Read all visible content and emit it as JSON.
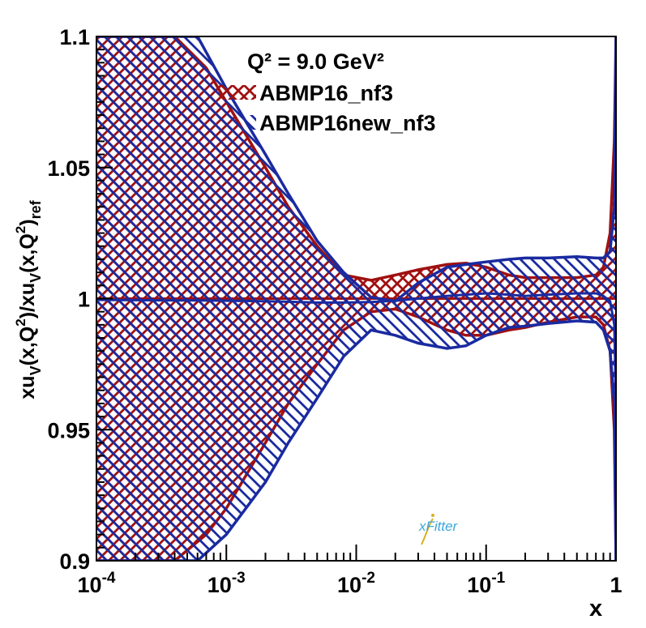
{
  "chart_data": {
    "type": "area",
    "title": "",
    "annotation": "Q² = 9.0 GeV²",
    "xlabel": "x",
    "ylabel": "xu_V(x,Q²)/xu_V(x,Q²)_ref",
    "xscale": "log",
    "xlim": [
      0.0001,
      1
    ],
    "ylim": [
      0.9,
      1.1
    ],
    "x_ticks": [
      {
        "value": 0.0001,
        "base": "10",
        "exp": "-4"
      },
      {
        "value": 0.001,
        "base": "10",
        "exp": "-3"
      },
      {
        "value": 0.01,
        "base": "10",
        "exp": "-2"
      },
      {
        "value": 0.1,
        "base": "10",
        "exp": "-1"
      },
      {
        "value": 1,
        "base": "1",
        "exp": ""
      }
    ],
    "y_ticks": [
      {
        "value": 0.9,
        "label": "0.9"
      },
      {
        "value": 0.95,
        "label": "0.95"
      },
      {
        "value": 1.0,
        "label": "1"
      },
      {
        "value": 1.05,
        "label": "1.05"
      },
      {
        "value": 1.1,
        "label": "1.1"
      }
    ],
    "legend_position": "top-center",
    "series": [
      {
        "name": "ABMP16_nf3",
        "color": "#a01010",
        "hatch": "crosshatch",
        "x": [
          0.0001,
          0.0004,
          0.0007,
          0.001,
          0.002,
          0.003,
          0.005,
          0.008,
          0.013,
          0.02,
          0.03,
          0.05,
          0.07,
          0.1,
          0.15,
          0.2,
          0.3,
          0.5,
          0.7,
          0.8,
          0.9,
          0.97,
          1.0
        ],
        "central": [
          1.0,
          1.0,
          1.0,
          1.0,
          1.0,
          1.0,
          1.0,
          1.0,
          1.0,
          1.0,
          1.0,
          1.0,
          1.0,
          1.0,
          1.0,
          1.0,
          1.0,
          1.0,
          1.0,
          1.0,
          1.0,
          1.0,
          1.0
        ],
        "upper": [
          1.1,
          1.1,
          1.088,
          1.075,
          1.05,
          1.035,
          1.02,
          1.009,
          1.007,
          1.009,
          1.011,
          1.013,
          1.0135,
          1.012,
          1.009,
          1.008,
          1.008,
          1.008,
          1.009,
          1.012,
          1.025,
          1.06,
          1.1
        ],
        "lower": [
          0.9,
          0.9,
          0.91,
          0.92,
          0.945,
          0.96,
          0.975,
          0.988,
          0.995,
          0.996,
          0.993,
          0.988,
          0.986,
          0.986,
          0.988,
          0.989,
          0.991,
          0.993,
          0.993,
          0.99,
          0.98,
          0.95,
          0.9
        ]
      },
      {
        "name": "ABMP16new_nf3",
        "color": "#1a2aa0",
        "hatch": "diagonal",
        "x": [
          0.0001,
          0.0004,
          0.0006,
          0.001,
          0.002,
          0.003,
          0.005,
          0.008,
          0.013,
          0.02,
          0.03,
          0.05,
          0.07,
          0.1,
          0.15,
          0.2,
          0.3,
          0.5,
          0.7,
          0.8,
          0.9,
          0.97,
          1.0
        ],
        "central": [
          0.9995,
          0.9993,
          0.9993,
          0.9992,
          0.999,
          0.9988,
          0.9985,
          0.9985,
          0.9987,
          0.9992,
          1.0,
          1.001,
          1.0015,
          1.002,
          1.0015,
          1.001,
          1.0015,
          1.002,
          1.002,
          1.001,
          0.999,
          0.99,
          0.96
        ],
        "upper": [
          1.1,
          1.1,
          1.1,
          1.08,
          1.055,
          1.04,
          1.022,
          1.01,
          1.0005,
          0.999,
          1.006,
          1.012,
          1.013,
          1.014,
          1.015,
          1.0155,
          1.0155,
          1.016,
          1.0155,
          1.0155,
          1.018,
          1.035,
          1.1
        ],
        "lower": [
          0.9,
          0.9,
          0.9,
          0.91,
          0.93,
          0.945,
          0.962,
          0.978,
          0.988,
          0.986,
          0.983,
          0.981,
          0.982,
          0.986,
          0.989,
          0.9895,
          0.9905,
          0.9915,
          0.991,
          0.988,
          0.98,
          0.96,
          0.9
        ]
      }
    ]
  },
  "logo": {
    "text": "xFitter"
  }
}
